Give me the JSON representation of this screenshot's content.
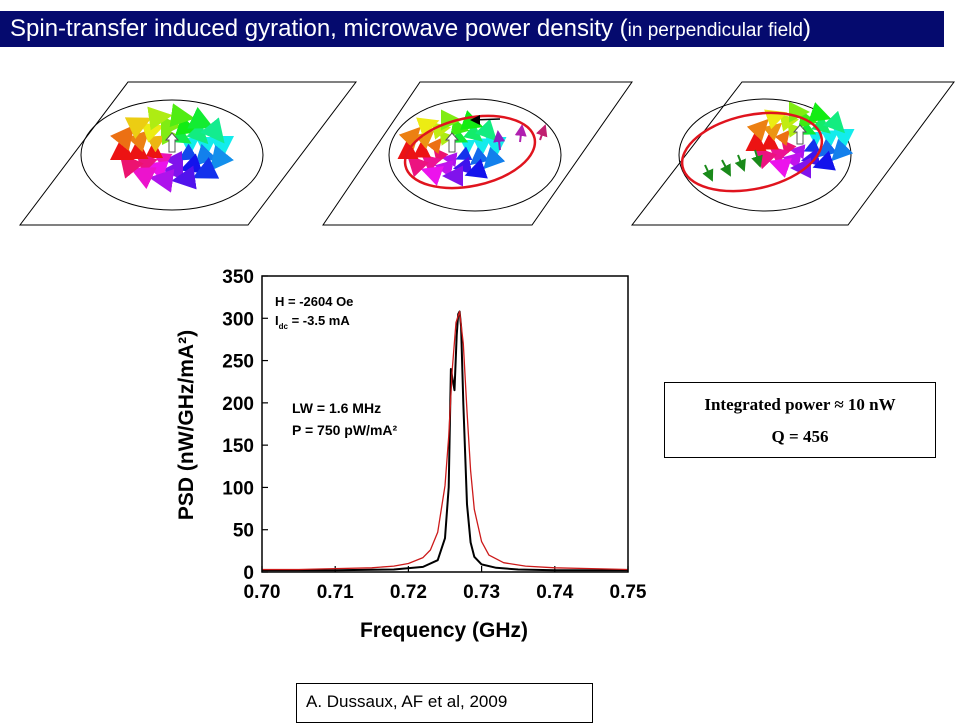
{
  "slide": {
    "title_main": "Spin-transfer induced gyration, microwave power density (",
    "title_small": "in perpendicular field",
    "title_close": ")"
  },
  "colors": {
    "title_bg": "#050a6e",
    "orbit": "#e0141e",
    "spectrum_line": "#000000",
    "fit_line": "#cc1a1a"
  },
  "diagrams": [
    {
      "label": "vortex-centered",
      "orbit": false
    },
    {
      "label": "vortex-gyrating-left",
      "orbit": true
    },
    {
      "label": "vortex-gyrating-right",
      "orbit": true
    }
  ],
  "chart_data": {
    "type": "line",
    "xlabel": "Frequency (GHz)",
    "ylabel": "PSD (nW/GHz/mA²)",
    "xlim": [
      0.7,
      0.75
    ],
    "ylim": [
      0,
      350
    ],
    "xticks": [
      "0.70",
      "0.71",
      "0.72",
      "0.73",
      "0.74",
      "0.75"
    ],
    "yticks": [
      "0",
      "50",
      "100",
      "150",
      "200",
      "250",
      "300",
      "350"
    ],
    "annotations": {
      "field": "H = -2604 Oe",
      "current_prefix": "I",
      "current_sub": "dc",
      "current_rest": " = -3.5 mA",
      "linewidth": "LW  = 1.6 MHz",
      "power": "P = 750 pW/mA²"
    },
    "series": [
      {
        "name": "measured",
        "x": [
          0.7,
          0.71,
          0.718,
          0.722,
          0.724,
          0.725,
          0.7255,
          0.7258,
          0.726,
          0.7263,
          0.7266,
          0.7268,
          0.727,
          0.7272,
          0.7275,
          0.728,
          0.7285,
          0.729,
          0.73,
          0.732,
          0.735,
          0.74,
          0.75
        ],
        "values": [
          2,
          2,
          3,
          6,
          14,
          40,
          100,
          240,
          230,
          215,
          280,
          305,
          308,
          290,
          200,
          80,
          35,
          18,
          9,
          5,
          3,
          2,
          2
        ]
      },
      {
        "name": "lorentzian fit",
        "x": [
          0.7,
          0.705,
          0.71,
          0.715,
          0.718,
          0.72,
          0.722,
          0.723,
          0.724,
          0.725,
          0.7255,
          0.726,
          0.7265,
          0.727,
          0.7275,
          0.728,
          0.7285,
          0.729,
          0.73,
          0.731,
          0.733,
          0.736,
          0.74,
          0.745,
          0.75
        ],
        "values": [
          3,
          3,
          4,
          5,
          7,
          10,
          17,
          26,
          47,
          102,
          160,
          240,
          295,
          308,
          270,
          190,
          120,
          74,
          36,
          20,
          11,
          7,
          5,
          4,
          3
        ]
      }
    ]
  },
  "summary": {
    "integrated_power": "Integrated power ≈ 10 nW",
    "q_factor": "Q = 456"
  },
  "citation": "A. Dussaux, AF et al, 2009"
}
